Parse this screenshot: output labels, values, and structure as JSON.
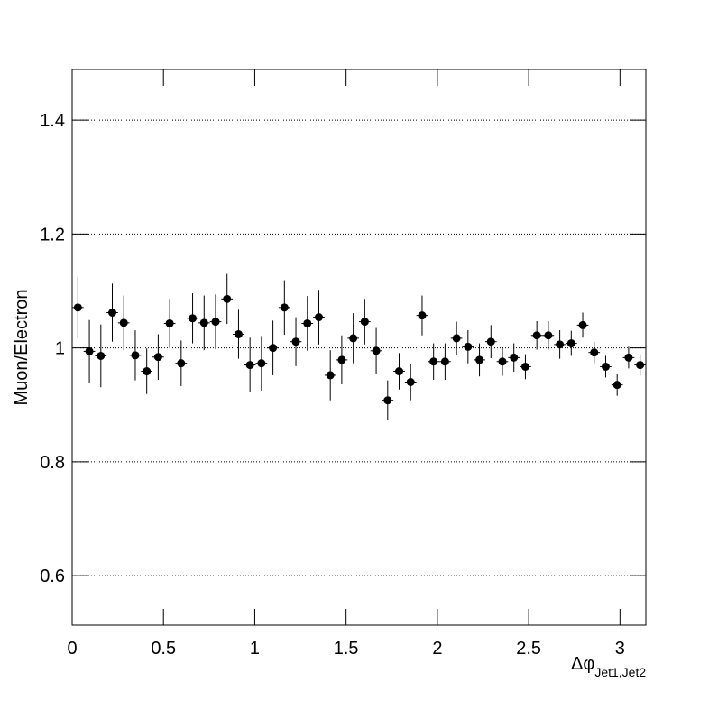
{
  "chart_data": {
    "type": "scatter",
    "ylabel": "Muon/Electron",
    "xlabel": "Δφ",
    "xlabel_sub": "Jet1,Jet2",
    "xlim": [
      0,
      3.1416
    ],
    "ylim": [
      0.513,
      1.489
    ],
    "xticks": [
      0,
      0.5,
      1,
      1.5,
      2,
      2.5,
      3
    ],
    "yticks": [
      0.6,
      0.8,
      1,
      1.2,
      1.4
    ],
    "grid": true,
    "series": [
      {
        "color": "#000000",
        "x": [
          0.0314,
          0.0942,
          0.1571,
          0.2199,
          0.2827,
          0.3456,
          0.4084,
          0.4712,
          0.5341,
          0.5969,
          0.6597,
          0.7226,
          0.7854,
          0.8482,
          0.9111,
          0.9739,
          1.0367,
          1.0996,
          1.1624,
          1.2252,
          1.2881,
          1.3509,
          1.4137,
          1.4765,
          1.5394,
          1.6022,
          1.665,
          1.7279,
          1.7907,
          1.8535,
          1.9164,
          1.9792,
          2.042,
          2.1049,
          2.1677,
          2.2305,
          2.2934,
          2.3562,
          2.419,
          2.4819,
          2.5447,
          2.6075,
          2.6704,
          2.7332,
          2.796,
          2.8588,
          2.9217,
          2.9845,
          3.0473,
          3.1102
        ],
        "values": [
          1.071,
          0.994,
          0.986,
          1.062,
          1.044,
          0.987,
          0.959,
          0.984,
          1.043,
          0.973,
          1.052,
          1.044,
          1.046,
          1.086,
          1.024,
          0.97,
          0.973,
          1.0,
          1.071,
          1.011,
          1.043,
          1.054,
          0.952,
          0.979,
          1.017,
          1.046,
          0.995,
          0.908,
          0.959,
          0.94,
          1.057,
          0.976,
          0.976,
          1.017,
          1.002,
          0.979,
          1.011,
          0.976,
          0.983,
          0.967,
          1.022,
          1.022,
          1.006,
          1.008,
          1.04,
          0.992,
          0.967,
          0.935,
          0.983,
          0.97
        ],
        "errors": [
          0.054,
          0.055,
          0.055,
          0.051,
          0.048,
          0.044,
          0.04,
          0.04,
          0.043,
          0.04,
          0.044,
          0.048,
          0.048,
          0.044,
          0.043,
          0.048,
          0.048,
          0.048,
          0.048,
          0.043,
          0.048,
          0.048,
          0.044,
          0.043,
          0.044,
          0.04,
          0.04,
          0.035,
          0.032,
          0.032,
          0.035,
          0.032,
          0.032,
          0.029,
          0.029,
          0.029,
          0.029,
          0.025,
          0.025,
          0.022,
          0.025,
          0.025,
          0.025,
          0.022,
          0.022,
          0.019,
          0.019,
          0.019,
          0.019,
          0.019
        ]
      }
    ]
  }
}
